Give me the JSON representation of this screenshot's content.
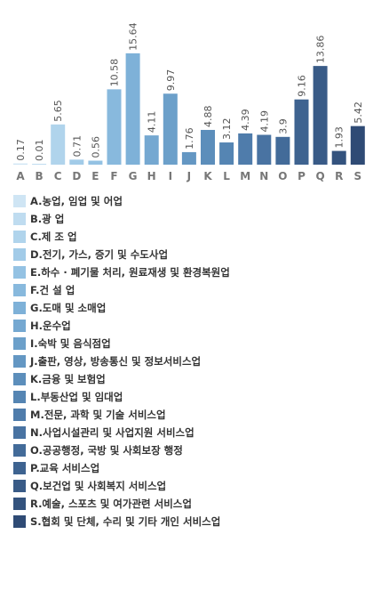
{
  "chart_data": {
    "type": "bar",
    "title": "",
    "xlabel": "",
    "ylabel": "",
    "ylim": [
      0,
      16
    ],
    "grid": false,
    "legend_position": "bottom",
    "categories": [
      "A",
      "B",
      "C",
      "D",
      "E",
      "F",
      "G",
      "H",
      "I",
      "J",
      "K",
      "L",
      "M",
      "N",
      "O",
      "P",
      "Q",
      "R",
      "S"
    ],
    "values": [
      0.17,
      0.01,
      5.65,
      0.71,
      0.56,
      10.58,
      15.64,
      4.11,
      9.97,
      1.76,
      4.88,
      3.12,
      4.39,
      4.19,
      3.9,
      9.16,
      13.86,
      1.93,
      5.42
    ],
    "value_labels": [
      "0.17",
      "0.01",
      "5.65",
      "0.71",
      "0.56",
      "10.58",
      "15.64",
      "4.11",
      "9.97",
      "1.76",
      "4.88",
      "3.12",
      "4.39",
      "4.19",
      "3.9",
      "9.16",
      "13.86",
      "1.93",
      "5.42"
    ],
    "legend": [
      "A.농업, 임업 및 어업",
      "B.광 업",
      "C.제 조 업",
      "D.전기, 가스, 증기 및 수도사업",
      "E.하수 · 폐기물 처리, 원료재생 및 환경복원업",
      "F.건 설 업",
      "G.도매 및 소매업",
      "H.운수업",
      "I.숙박 및 음식점업",
      "J.출판, 영상, 방송통신 및 정보서비스업",
      "K.금융 및 보험업",
      "L.부동산업 및 임대업",
      "M.전문, 과학 및 기술 서비스업",
      "N.사업시설관리 및 사업지원 서비스업",
      "O.공공행정, 국방 및 사회보장 행정",
      "P.교육 서비스업",
      "Q.보건업 및 사회복지 서비스업",
      "R.예술, 스포츠 및 여가관련 서비스업",
      "S.협회 및 단체, 수리 및 기타 개인 서비스업"
    ],
    "colors": [
      "#cfe5f4",
      "#bfdcf0",
      "#b0d4ec",
      "#a2cbe8",
      "#94c2e3",
      "#88b9dd",
      "#7eb1d8",
      "#75a8d1",
      "#6ca0ca",
      "#6497c3",
      "#5c8ebb",
      "#5585b3",
      "#4f7cab",
      "#4973a2",
      "#436b99",
      "#3e6390",
      "#395b87",
      "#34537e",
      "#2f4b75"
    ]
  }
}
